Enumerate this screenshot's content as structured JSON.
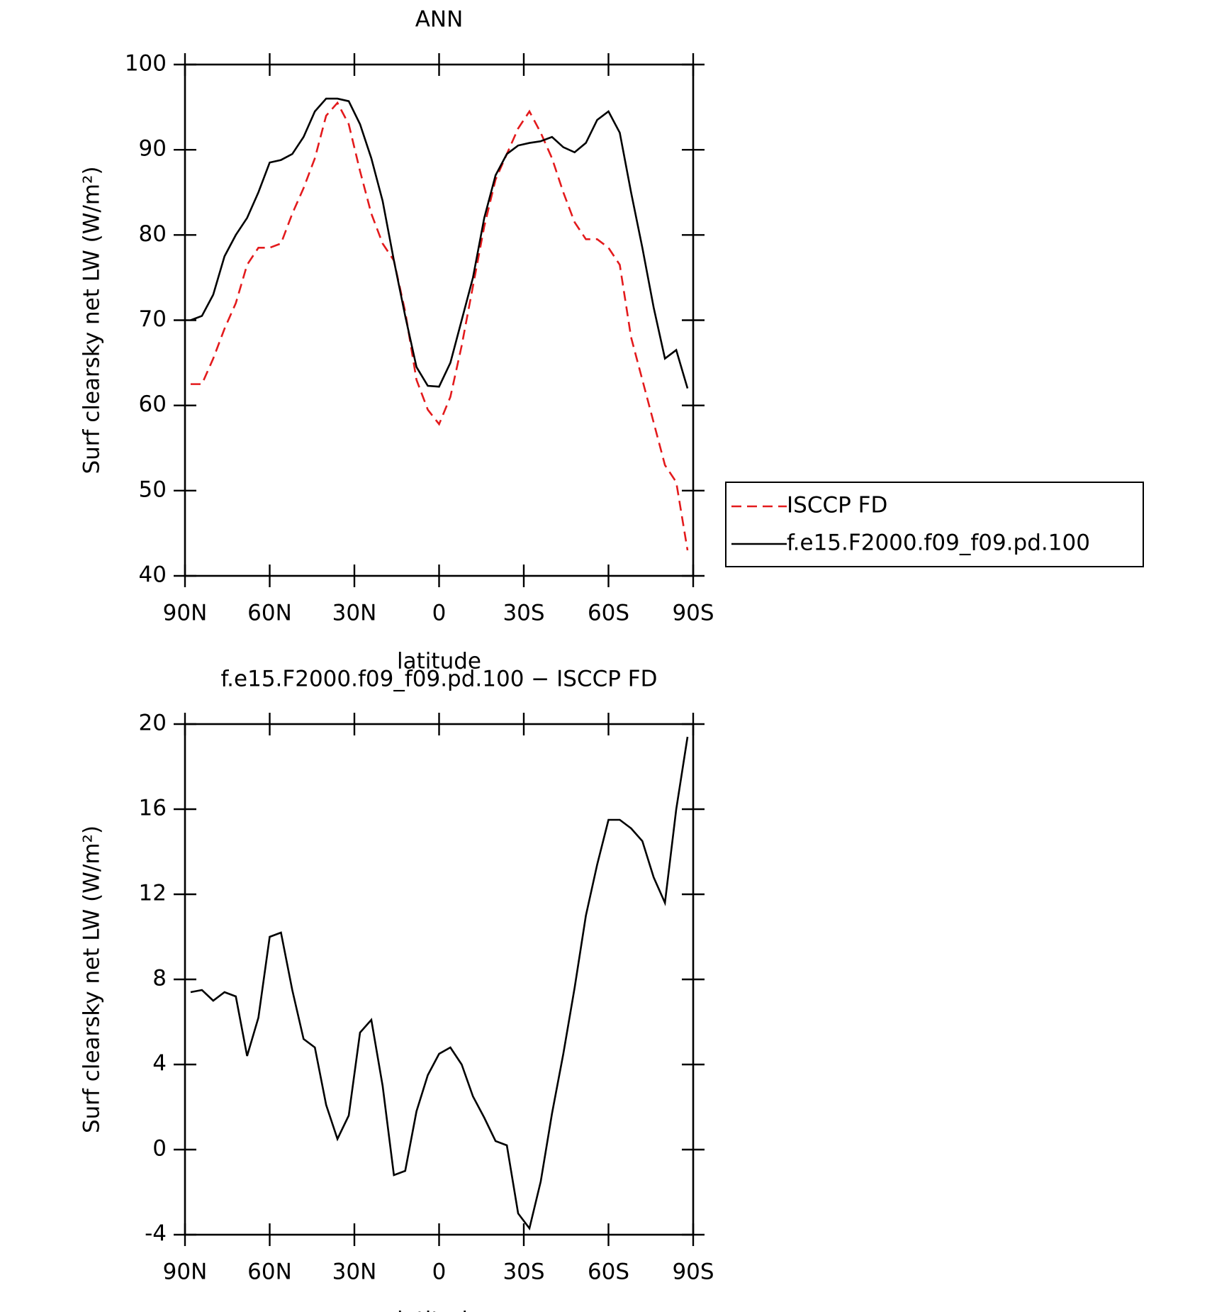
{
  "chart_data": [
    {
      "type": "line",
      "title": "ANN",
      "xlabel": "latitude",
      "ylabel": "Surf clearsky net LW (W/m²)",
      "x": [
        88,
        84,
        80,
        76,
        72,
        68,
        64,
        60,
        56,
        52,
        48,
        44,
        40,
        36,
        32,
        28,
        24,
        20,
        16,
        12,
        8,
        4,
        0,
        -4,
        -8,
        -12,
        -16,
        -20,
        -24,
        -28,
        -32,
        -36,
        -40,
        -44,
        -48,
        -52,
        -56,
        -60,
        -64,
        -68,
        -72,
        -76,
        -80,
        -84,
        -88
      ],
      "xlim": [
        90,
        -90
      ],
      "xticks": [
        {
          "value": 90,
          "label": "90N"
        },
        {
          "value": 60,
          "label": "60N"
        },
        {
          "value": 30,
          "label": "30N"
        },
        0,
        {
          "value": -30,
          "label": "30S"
        },
        {
          "value": -60,
          "label": "60S"
        },
        {
          "value": -90,
          "label": "90S"
        }
      ],
      "ylim": [
        40,
        100
      ],
      "yticks": [
        40,
        50,
        60,
        70,
        80,
        90,
        100
      ],
      "legend": "right",
      "series": [
        {
          "name": "ISCCP FD",
          "color": "#e31a1c",
          "style": "dashed",
          "values": [
            62.5,
            62.5,
            65.5,
            69,
            72,
            76.5,
            78.5,
            78.5,
            79,
            82.5,
            85.5,
            89,
            94,
            95.5,
            93,
            87.5,
            82.5,
            79,
            77,
            71,
            63,
            59.5,
            57.8,
            61,
            67,
            74,
            81,
            86.5,
            89.5,
            92.5,
            94.5,
            92,
            89,
            85,
            81.5,
            79.5,
            79.5,
            78.5,
            76.5,
            68,
            63,
            58,
            53,
            51,
            43
          ]
        },
        {
          "name": "f.e15.F2000.f09_f09.pd.100",
          "color": "#000000",
          "style": "solid",
          "values": [
            70,
            70.5,
            73,
            77.5,
            80,
            82,
            85,
            88.5,
            88.8,
            89.5,
            91.5,
            94.5,
            96,
            96,
            95.7,
            93,
            89,
            84,
            77,
            70.5,
            64.5,
            62.3,
            62.2,
            65,
            70,
            75,
            82,
            87,
            89.5,
            90.5,
            90.8,
            91,
            91.5,
            90.3,
            89.7,
            90.8,
            93.5,
            94.5,
            92,
            85,
            78.5,
            71.5,
            65.5,
            66.5,
            62
          ]
        }
      ]
    },
    {
      "type": "line",
      "title": "f.e15.F2000.f09_f09.pd.100 − ISCCP FD",
      "xlabel": "latitude",
      "ylabel": "Surf clearsky net LW (W/m²)",
      "x": [
        88,
        84,
        80,
        76,
        72,
        68,
        64,
        60,
        56,
        52,
        48,
        44,
        40,
        36,
        32,
        28,
        24,
        20,
        16,
        12,
        8,
        4,
        0,
        -4,
        -8,
        -12,
        -16,
        -20,
        -24,
        -28,
        -32,
        -36,
        -40,
        -44,
        -48,
        -52,
        -56,
        -60,
        -64,
        -68,
        -72,
        -76,
        -80,
        -84,
        -88
      ],
      "xlim": [
        90,
        -90
      ],
      "xticks": [
        {
          "value": 90,
          "label": "90N"
        },
        {
          "value": 60,
          "label": "60N"
        },
        {
          "value": 30,
          "label": "30N"
        },
        0,
        {
          "value": -30,
          "label": "30S"
        },
        {
          "value": -60,
          "label": "60S"
        },
        {
          "value": -90,
          "label": "90S"
        }
      ],
      "ylim": [
        -4,
        20
      ],
      "yticks": [
        -4,
        0,
        4,
        8,
        12,
        16,
        20
      ],
      "color": "#000000",
      "values": [
        7.4,
        7.5,
        7.0,
        7.4,
        7.2,
        4.4,
        6.2,
        10,
        10.2,
        7.5,
        5.2,
        4.8,
        2.1,
        0.5,
        1.6,
        5.5,
        6.1,
        3.0,
        -1.2,
        -1,
        1.8,
        3.5,
        4.5,
        4.8,
        4.0,
        2.5,
        1.5,
        0.4,
        0.2,
        -3.0,
        -3.7,
        -1.5,
        1.7,
        4.5,
        7.6,
        11,
        13.4,
        15.5,
        15.5,
        15.1,
        14.5,
        12.8,
        11.6,
        16,
        19.4
      ]
    }
  ]
}
